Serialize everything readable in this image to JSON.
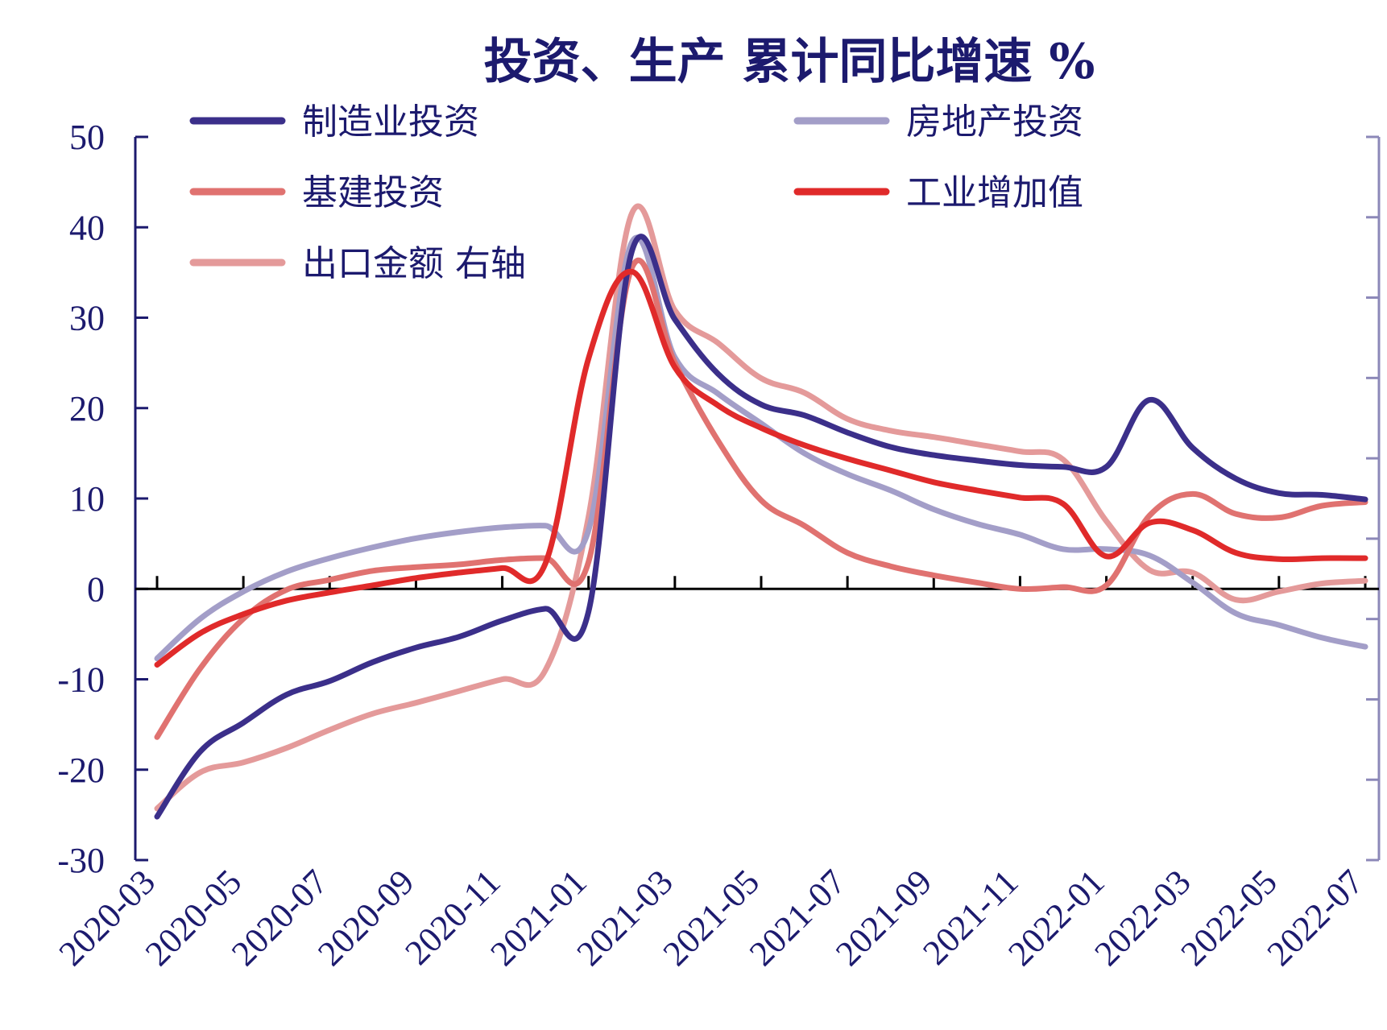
{
  "chart_data": {
    "type": "line",
    "title": "投资、生产 累计同比增速 %",
    "x": [
      "2020-03",
      "2020-04",
      "2020-05",
      "2020-06",
      "2020-07",
      "2020-08",
      "2020-09",
      "2020-10",
      "2020-11",
      "2020-12",
      "2021-01",
      "2021-02",
      "2021-03",
      "2021-04",
      "2021-05",
      "2021-06",
      "2021-07",
      "2021-08",
      "2021-09",
      "2021-10",
      "2021-11",
      "2021-12",
      "2022-01",
      "2022-02",
      "2022-03",
      "2022-04",
      "2022-05",
      "2022-06",
      "2022-07"
    ],
    "x_tick_labels": [
      "2020-03",
      "2020-05",
      "2020-07",
      "2020-09",
      "2020-11",
      "2021-01",
      "2021-03",
      "2021-05",
      "2021-07",
      "2021-09",
      "2021-11",
      "2022-01",
      "2022-03",
      "2022-05",
      "2022-07"
    ],
    "ylim": [
      -30,
      50
    ],
    "y_ticks": [
      -30,
      -20,
      -10,
      0,
      10,
      20,
      30,
      40,
      50
    ],
    "right_axis": {
      "tick_count": 10,
      "tick_labels_shown": false
    },
    "legend_position": "top",
    "series": [
      {
        "name": "制造业投资",
        "axis": "left",
        "color": "#3b2f8a",
        "values": [
          -25.2,
          -18.0,
          -14.8,
          -11.7,
          -10.2,
          -8.1,
          -6.5,
          -5.3,
          -3.5,
          -2.2,
          -2.5,
          37.3,
          29.8,
          23.8,
          20.4,
          19.2,
          17.3,
          15.7,
          14.8,
          14.2,
          13.7,
          13.5,
          13.5,
          20.9,
          15.6,
          12.2,
          10.6,
          10.4,
          9.9
        ]
      },
      {
        "name": "房地产投资",
        "axis": "left",
        "color": "#a39ec8",
        "values": [
          -7.7,
          -3.3,
          -0.3,
          1.9,
          3.4,
          4.6,
          5.6,
          6.3,
          6.8,
          7.0,
          6.5,
          38.3,
          25.6,
          21.6,
          18.3,
          15.0,
          12.7,
          10.9,
          8.8,
          7.2,
          6.0,
          4.4,
          4.4,
          3.7,
          0.7,
          -2.7,
          -4.0,
          -5.4,
          -6.4
        ]
      },
      {
        "name": "基建投资",
        "axis": "left",
        "color": "#e07270",
        "values": [
          -16.4,
          -8.8,
          -3.3,
          -0.1,
          1.0,
          2.0,
          2.4,
          2.7,
          3.2,
          3.4,
          3.0,
          35.5,
          25.0,
          16.4,
          9.8,
          7.0,
          4.0,
          2.5,
          1.5,
          0.7,
          0.0,
          0.2,
          0.4,
          8.1,
          10.5,
          8.3,
          7.9,
          9.2,
          9.6
        ]
      },
      {
        "name": "工业增加值",
        "axis": "left",
        "color": "#e02a2a",
        "values": [
          -8.4,
          -4.9,
          -2.8,
          -1.3,
          -0.4,
          0.4,
          1.2,
          1.8,
          2.3,
          2.8,
          25.5,
          35.1,
          24.5,
          20.3,
          17.8,
          15.9,
          14.4,
          13.1,
          11.8,
          10.9,
          10.1,
          9.4,
          3.6,
          7.3,
          6.5,
          4.0,
          3.3,
          3.4,
          3.4
        ]
      },
      {
        "name": "出口金额 右轴",
        "axis": "right",
        "color": "#e49a9a",
        "values": [
          -24.3,
          -20.3,
          -19.2,
          -17.6,
          -15.6,
          -13.8,
          -12.6,
          -11.3,
          -10.0,
          -9.0,
          8.0,
          41.5,
          30.8,
          27.2,
          23.3,
          21.7,
          18.8,
          17.5,
          16.8,
          16.0,
          15.2,
          14.3,
          7.5,
          2.1,
          1.8,
          -1.2,
          -0.3,
          0.6,
          0.9
        ]
      }
    ]
  }
}
